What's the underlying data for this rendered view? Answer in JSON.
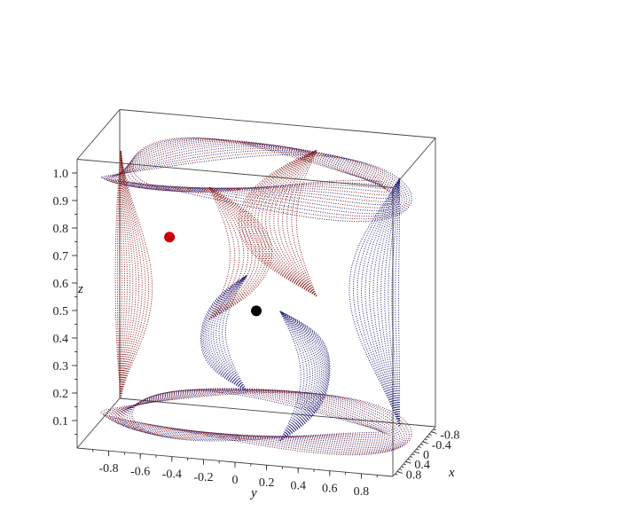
{
  "chart_data": {
    "type": "scatter",
    "dimension": 3,
    "axes": {
      "x": {
        "label": "x",
        "range": [
          -1,
          1
        ],
        "tick_labels": [
          "-0.8",
          "-0.4",
          "0",
          "0.4",
          "0.8"
        ],
        "tick_values": [
          -0.8,
          -0.4,
          0,
          0.4,
          0.8
        ]
      },
      "y": {
        "label": "y",
        "range": [
          -1,
          1
        ],
        "tick_labels": [
          "-0.8",
          "-0.6",
          "-0.4",
          "-0.2",
          "0",
          "0.2",
          "0.4",
          "0.6",
          "0.8"
        ],
        "tick_values": [
          -0.8,
          -0.6,
          -0.4,
          -0.2,
          0,
          0.2,
          0.4,
          0.6,
          0.8
        ]
      },
      "z": {
        "label": "z",
        "range": [
          0,
          1.05
        ],
        "tick_labels": [
          "0.1",
          "0.2",
          "0.3",
          "0.4",
          "0.5",
          "0.6",
          "0.7",
          "0.8",
          "0.9",
          "1.0"
        ],
        "tick_values": [
          0.1,
          0.2,
          0.3,
          0.4,
          0.5,
          0.6,
          0.7,
          0.8,
          0.9,
          1.0
        ]
      }
    },
    "grid": false,
    "legend": "none",
    "series": [
      {
        "color": "#8b1c1c",
        "style": "dotted curves",
        "family": "red"
      },
      {
        "color": "#23237e",
        "style": "dotted curves",
        "family": "blue"
      }
    ],
    "markers": [
      {
        "color": "#cc0000",
        "x": 0.0,
        "y": -0.55,
        "z": 0.7
      },
      {
        "color": "#000000",
        "x": 0.0,
        "y": 0.0,
        "z": 0.46
      }
    ]
  }
}
